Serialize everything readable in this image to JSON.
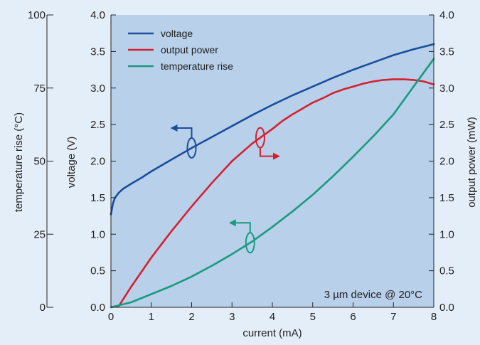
{
  "chart_data": {
    "type": "line",
    "xlabel": "current (mA)",
    "ylabel_voltage": "voltage (V)",
    "ylabel_temperature": "temperature rise (°C)",
    "ylabel_power": "output power (mW)",
    "xlim": [
      0,
      8
    ],
    "ylim_voltage": [
      0,
      4
    ],
    "ylim_power": [
      0,
      4
    ],
    "ylim_temperature": [
      0,
      100
    ],
    "x_ticks": [
      "0",
      "1",
      "2",
      "3",
      "4",
      "5",
      "6",
      "7",
      "8"
    ],
    "y_voltage_ticks": [
      "0.0",
      "0.5",
      "1.0",
      "1.5",
      "2.0",
      "2.5",
      "3.0",
      "3.5",
      "4.0"
    ],
    "y_power_ticks": [
      "0.0",
      "0.5",
      "1.0",
      "1.5",
      "2.0",
      "2.5",
      "3.0",
      "3.5",
      "4.0"
    ],
    "y_temperature_ticks": [
      "0",
      "25",
      "50",
      "75",
      "100"
    ],
    "annotation": "3 µm device @ 20°C",
    "legend_position": "top-left",
    "plot_background": "#b8d0ea",
    "series": [
      {
        "name": "voltage",
        "axis": "voltage",
        "color": "#1a4e9c",
        "x": [
          0,
          0.05,
          0.1,
          0.2,
          0.3,
          0.5,
          0.75,
          1,
          1.5,
          2,
          2.5,
          3,
          3.5,
          4,
          4.5,
          5,
          5.5,
          6,
          6.5,
          7,
          7.5,
          8
        ],
        "y": [
          1.27,
          1.42,
          1.5,
          1.57,
          1.62,
          1.69,
          1.77,
          1.86,
          2.02,
          2.18,
          2.33,
          2.48,
          2.63,
          2.77,
          2.9,
          3.02,
          3.14,
          3.25,
          3.35,
          3.45,
          3.53,
          3.6
        ]
      },
      {
        "name": "output power",
        "axis": "power",
        "color": "#d42030",
        "x": [
          0,
          0.2,
          0.5,
          1,
          1.5,
          2,
          2.5,
          3,
          3.5,
          4,
          4.25,
          4.5,
          4.75,
          5,
          5.25,
          5.5,
          5.75,
          6,
          6.25,
          6.5,
          6.75,
          7,
          7.25,
          7.5,
          7.75,
          8
        ],
        "y": [
          0,
          0.02,
          0.28,
          0.68,
          1.04,
          1.38,
          1.7,
          2.0,
          2.24,
          2.44,
          2.55,
          2.64,
          2.72,
          2.8,
          2.86,
          2.93,
          2.98,
          3.02,
          3.06,
          3.09,
          3.11,
          3.12,
          3.12,
          3.11,
          3.09,
          3.05
        ]
      },
      {
        "name": "temperature rise",
        "axis": "temperature",
        "color": "#1a9a80",
        "x": [
          0,
          0.5,
          1,
          1.5,
          2,
          2.5,
          3,
          3.5,
          4,
          4.5,
          5,
          5.5,
          6,
          6.5,
          7,
          7.5,
          8
        ],
        "y": [
          0,
          1.7,
          4.5,
          7.3,
          10.5,
          14.2,
          18.2,
          22.5,
          27.5,
          32.8,
          38.5,
          44.8,
          51.5,
          58.5,
          66,
          75.5,
          85
        ]
      }
    ],
    "series_markers": [
      {
        "series": "voltage",
        "color": "#1a4e9c",
        "at_x": 2.0,
        "direction": "left"
      },
      {
        "series": "output power",
        "color": "#d42030",
        "at_x": 3.7,
        "direction": "right"
      },
      {
        "series": "temperature rise",
        "color": "#1a9a80",
        "at_x": 3.45,
        "direction": "left"
      }
    ]
  }
}
